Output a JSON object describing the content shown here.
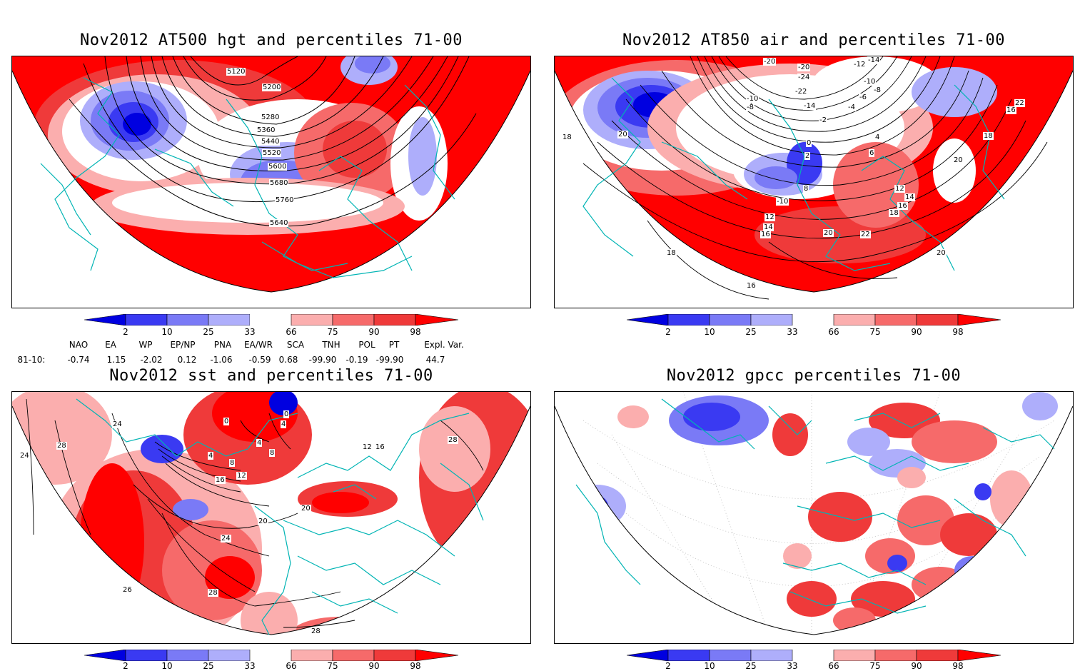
{
  "panels": [
    {
      "id": "hgt500",
      "title": "Nov2012 AT500 hgt and percentiles 71-00",
      "contour_labels": [
        "5120",
        "5200",
        "5280",
        "5360",
        "5440",
        "5520",
        "5600",
        "5680",
        "5760",
        "5640"
      ]
    },
    {
      "id": "air850",
      "title": "Nov2012 AT850 air and percentiles 71-00",
      "contour_labels": [
        "-20",
        "-20",
        "-12",
        "-14",
        "-24",
        "-22",
        "-10",
        "-8",
        "-10",
        "-8",
        "-14",
        "-6",
        "-4",
        "-2",
        "0",
        "2",
        "4",
        "6",
        "8",
        "-10",
        "12",
        "14",
        "16",
        "18",
        "20",
        "22",
        "12",
        "14",
        "16",
        "18",
        "20",
        "22",
        "18",
        "16",
        "18",
        "20",
        "16",
        "20"
      ]
    },
    {
      "id": "sst",
      "title": "Nov2012 sst and percentiles 71-00",
      "contour_labels": [
        "24",
        "28",
        "24",
        "0",
        "0",
        "4",
        "4",
        "4",
        "8",
        "8",
        "12",
        "16",
        "12",
        "16",
        "20",
        "20",
        "24",
        "26",
        "28",
        "28",
        "28"
      ]
    },
    {
      "id": "gpcc",
      "title": "Nov2012 gpcc percentiles 71-00",
      "contour_labels": []
    }
  ],
  "colorbar": {
    "labels": [
      "2",
      "10",
      "25",
      "33",
      "66",
      "75",
      "90",
      "98"
    ],
    "colors": [
      "#0000e0",
      "#3a3af2",
      "#7a7af6",
      "#aeaefb",
      "#ffffff",
      "#fbaeae",
      "#f66a6a",
      "#ef3a3a",
      "#ff0000"
    ]
  },
  "indices": {
    "headers": [
      "NAO",
      "EA",
      "WP",
      "EP/NP",
      "PNA",
      "EA/WR",
      "SCA",
      "TNH",
      "POL",
      "PT",
      "Expl. Var."
    ],
    "row_label": "81-10:",
    "values": [
      "-0.74",
      "1.15",
      "-2.02",
      "0.12",
      "-1.06",
      "-0.59",
      "0.68",
      "-99.90",
      "-0.19",
      "-99.90",
      "44.7"
    ]
  }
}
